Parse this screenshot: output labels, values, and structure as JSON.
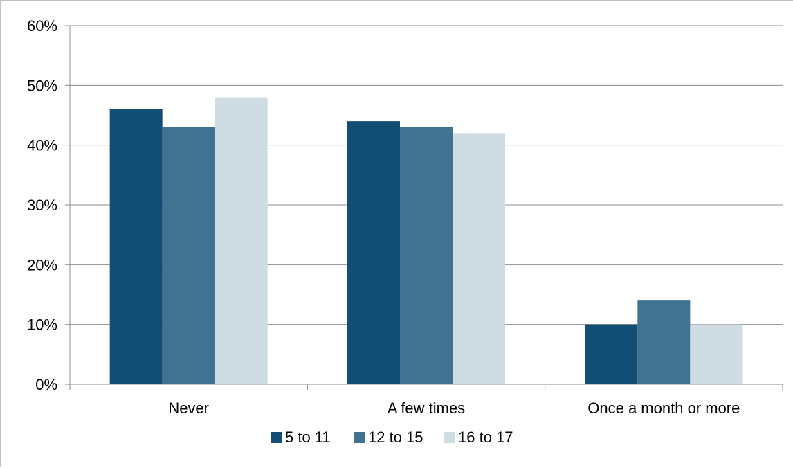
{
  "chart_data": {
    "type": "bar",
    "categories": [
      "Never",
      "A few times",
      "Once a month or more"
    ],
    "series": [
      {
        "name": "5 to 11",
        "values": [
          46,
          44,
          10
        ],
        "color": "#124e73"
      },
      {
        "name": "12 to 15",
        "values": [
          43,
          43,
          14
        ],
        "color": "#41728f"
      },
      {
        "name": "16 to 17",
        "values": [
          48,
          42,
          10
        ],
        "color": "#d0dce4"
      }
    ],
    "ylim": [
      0,
      60
    ],
    "yticks": [
      0,
      10,
      20,
      30,
      40,
      50,
      60
    ],
    "ytick_labels": [
      "0%",
      "10%",
      "20%",
      "30%",
      "40%",
      "50%",
      "60%"
    ],
    "grid": true,
    "legend_position": "bottom",
    "title": "",
    "xlabel": "",
    "ylabel": ""
  }
}
